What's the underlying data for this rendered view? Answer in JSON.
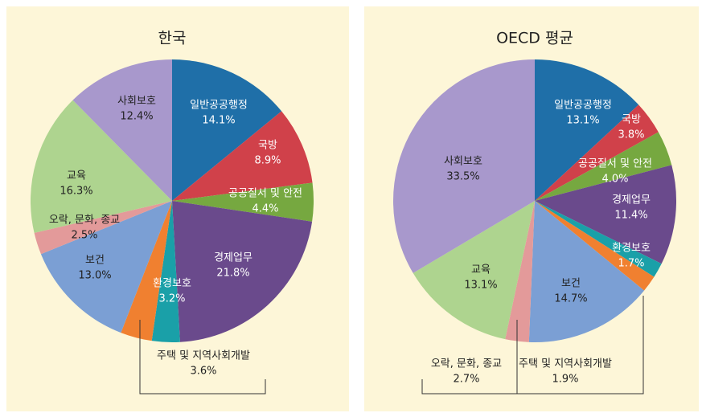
{
  "chart_data": [
    {
      "type": "pie",
      "title": "한국",
      "categories": [
        "일반공공행정",
        "국방",
        "공공질서 및 안전",
        "경제업무",
        "환경보호",
        "주택 및 지역사회개발",
        "보건",
        "오락, 문화, 종교",
        "교육",
        "사회보호"
      ],
      "values": [
        14.1,
        8.9,
        4.4,
        21.8,
        3.2,
        3.6,
        13.0,
        2.5,
        16.3,
        12.4
      ],
      "value_labels": [
        "14.1%",
        "8.9%",
        "4.4%",
        "21.8%",
        "3.2%",
        "3.6%",
        "13.0%",
        "2.5%",
        "16.3%",
        "12.4%"
      ],
      "colors": [
        "#1f6fa8",
        "#d0414a",
        "#76a840",
        "#6a4a8c",
        "#1aa0a8",
        "#f08030",
        "#7b9fd4",
        "#e39a9a",
        "#aed48f",
        "#a898cc"
      ]
    },
    {
      "type": "pie",
      "title": "OECD 평균",
      "categories": [
        "일반공공행정",
        "국방",
        "공공질서 및 안전",
        "경제업무",
        "환경보호",
        "주택 및 지역사회개발",
        "보건",
        "오락, 문화, 종교",
        "교육",
        "사회보호"
      ],
      "values": [
        13.1,
        3.8,
        4.0,
        11.4,
        1.7,
        1.9,
        14.7,
        2.7,
        13.1,
        33.5
      ],
      "value_labels": [
        "13.1%",
        "3.8%",
        "4.0%",
        "11.4%",
        "1.7%",
        "1.9%",
        "14.7%",
        "2.7%",
        "13.1%",
        "33.5%"
      ],
      "colors": [
        "#1f6fa8",
        "#d0414a",
        "#76a840",
        "#6a4a8c",
        "#1aa0a8",
        "#f08030",
        "#7b9fd4",
        "#e39a9a",
        "#aed48f",
        "#a898cc"
      ]
    }
  ]
}
